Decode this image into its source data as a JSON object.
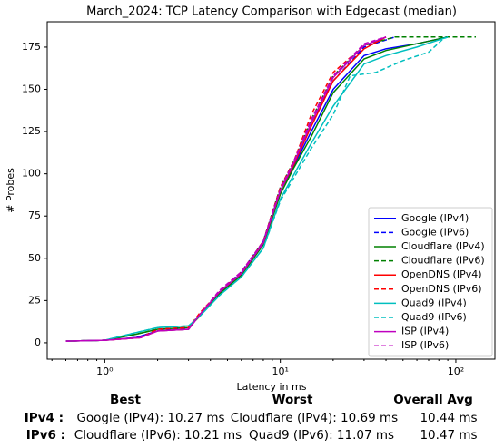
{
  "chart_data": {
    "type": "line",
    "title": "March_2024: TCP Latency Comparison with Edgecast (median)",
    "xlabel": "Latency in ms",
    "ylabel": "# Probes",
    "xscale": "log",
    "xlim": [
      0.47,
      167
    ],
    "ylim": [
      -9.7,
      190
    ],
    "xticks": [
      {
        "value": 1,
        "label": "10⁰"
      },
      {
        "value": 10,
        "label": "10¹"
      },
      {
        "value": 100,
        "label": "10²"
      }
    ],
    "xminorticks": [
      0.5,
      0.6,
      0.7,
      0.8,
      0.9,
      2,
      3,
      4,
      5,
      6,
      7,
      8,
      9,
      20,
      30,
      40,
      50,
      60,
      70,
      80,
      90
    ],
    "yticks": [
      0,
      25,
      50,
      75,
      100,
      125,
      150,
      175
    ],
    "legend": "lower right",
    "series": [
      {
        "name": "Google (IPv4)",
        "color": "#0000ff",
        "dash": false,
        "x": [
          0.6,
          1,
          1.5,
          2,
          3,
          3.5,
          4.5,
          6,
          8,
          10,
          12,
          15,
          20,
          30,
          40,
          60,
          90
        ],
        "values": [
          1,
          1.5,
          3,
          7,
          8,
          17,
          30,
          40,
          60,
          90,
          105,
          125,
          150,
          170,
          174,
          177,
          181
        ]
      },
      {
        "name": "Google (IPv6)",
        "color": "#0000ff",
        "dash": true,
        "x": [
          0.6,
          1,
          1.5,
          2,
          3,
          3.5,
          4.5,
          6,
          8,
          10,
          12,
          15,
          20,
          30,
          45
        ],
        "values": [
          1,
          1.5,
          3,
          7,
          9,
          17,
          30,
          42,
          60,
          92,
          107,
          130,
          155,
          175,
          181
        ]
      },
      {
        "name": "Cloudflare (IPv4)",
        "color": "#008000",
        "dash": false,
        "x": [
          0.6,
          1,
          1.5,
          2,
          3,
          3.5,
          4.5,
          6,
          8,
          10,
          12,
          15,
          20,
          30,
          40,
          60,
          90
        ],
        "values": [
          1,
          1.5,
          5,
          8,
          9,
          16,
          29,
          40,
          58,
          88,
          104,
          122,
          148,
          168,
          173,
          177,
          181
        ]
      },
      {
        "name": "Cloudflare (IPv6)",
        "color": "#008000",
        "dash": true,
        "x": [
          0.6,
          1,
          1.5,
          2,
          3,
          3.5,
          4.5,
          6,
          8,
          10,
          12,
          15,
          20,
          30,
          45,
          130
        ],
        "values": [
          1,
          1.5,
          5,
          8,
          9,
          17,
          30,
          41,
          60,
          92,
          108,
          132,
          158,
          176,
          181,
          181
        ]
      },
      {
        "name": "OpenDNS (IPv4)",
        "color": "#ff0000",
        "dash": false,
        "x": [
          0.6,
          1,
          1.6,
          2,
          3,
          3.5,
          4.5,
          6,
          8,
          10,
          12,
          15,
          20,
          30,
          40
        ],
        "values": [
          1,
          1.5,
          3,
          7,
          8,
          17,
          30,
          41,
          59,
          90,
          106,
          128,
          155,
          174,
          181
        ]
      },
      {
        "name": "OpenDNS (IPv6)",
        "color": "#ff0000",
        "dash": true,
        "x": [
          0.6,
          1,
          1.6,
          2,
          3,
          3.5,
          4.5,
          6,
          8,
          10,
          12,
          15,
          20,
          30,
          40
        ],
        "values": [
          1,
          1.5,
          3,
          8,
          9,
          18,
          30,
          42,
          60,
          92,
          108,
          135,
          160,
          176,
          181
        ]
      },
      {
        "name": "Quad9 (IPv4)",
        "color": "#00bfbf",
        "dash": false,
        "x": [
          0.6,
          1,
          1.5,
          2,
          3,
          3.5,
          4.5,
          6,
          8,
          10,
          12,
          15,
          20,
          30,
          40,
          60,
          90
        ],
        "values": [
          1,
          1.5,
          6,
          9,
          10,
          16,
          28,
          39,
          56,
          85,
          100,
          118,
          140,
          165,
          170,
          175,
          181
        ]
      },
      {
        "name": "Quad9 (IPv6)",
        "color": "#00bfbf",
        "dash": true,
        "x": [
          0.6,
          1,
          1.5,
          2,
          3,
          3.5,
          4.5,
          6,
          8,
          10,
          12,
          15,
          20,
          25,
          35,
          50,
          70,
          85,
          90
        ],
        "values": [
          1,
          1.5,
          6,
          9,
          10,
          16,
          28,
          39,
          56,
          84,
          98,
          115,
          135,
          158,
          160,
          167,
          172,
          180,
          181
        ]
      },
      {
        "name": "ISP (IPv4)",
        "color": "#bf00bf",
        "dash": false,
        "x": [
          0.6,
          1,
          1.6,
          2,
          3,
          3.5,
          4.5,
          6,
          8,
          10,
          12,
          15,
          20,
          30,
          40
        ],
        "values": [
          1,
          1.5,
          3,
          7,
          8,
          17,
          30,
          41,
          59,
          90,
          107,
          130,
          157,
          176,
          181
        ]
      },
      {
        "name": "ISP (IPv6)",
        "color": "#bf00bf",
        "dash": true,
        "x": [
          0.6,
          1,
          1.6,
          2,
          3,
          3.5,
          4.5,
          6,
          8,
          10,
          12,
          15,
          20,
          30,
          40
        ],
        "values": [
          1,
          1.5,
          3,
          7,
          8,
          17,
          31,
          42,
          60,
          91,
          108,
          132,
          158,
          177,
          181
        ]
      }
    ]
  },
  "table": {
    "headers": [
      "Best",
      "Worst",
      "Overall Avg"
    ],
    "rows": [
      [
        "IPv4 :",
        "Google (IPv4): 10.27 ms",
        "Cloudflare (IPv4): 10.69 ms",
        "10.44 ms"
      ],
      [
        "IPv6 :",
        "Cloudflare (IPv6): 10.21 ms",
        "Quad9 (IPv6): 11.07 ms",
        "10.47 ms"
      ]
    ]
  }
}
